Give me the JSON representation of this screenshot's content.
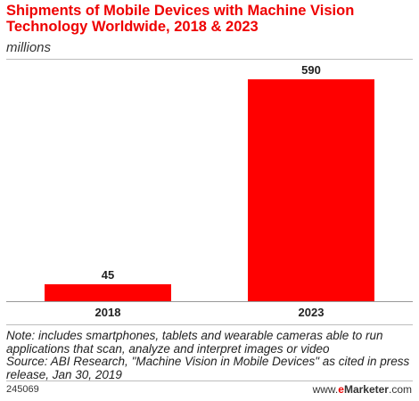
{
  "chart_data": {
    "type": "bar",
    "title": "Shipments of Mobile Devices with Machine Vision Technology Worldwide, 2018 & 2023",
    "subtitle": "millions",
    "categories": [
      "2018",
      "2023"
    ],
    "values": [
      45,
      590
    ],
    "data_labels": [
      "45",
      "590"
    ],
    "ylim": [
      0,
      590
    ],
    "grid": false,
    "bar_color": "#ff0000"
  },
  "notes": {
    "note": "Note: includes smartphones, tablets and wearable cameras able to run applications that scan, analyze and interpret images or video",
    "source": "Source: ABI Research, \"Machine Vision in Mobile Devices\" as cited in press release, Jan 30, 2019"
  },
  "footer": {
    "chart_id": "245069",
    "brand_prefix": "www.",
    "brand_accent": "e",
    "brand_name": "Marketer",
    "brand_suffix": ".com"
  }
}
